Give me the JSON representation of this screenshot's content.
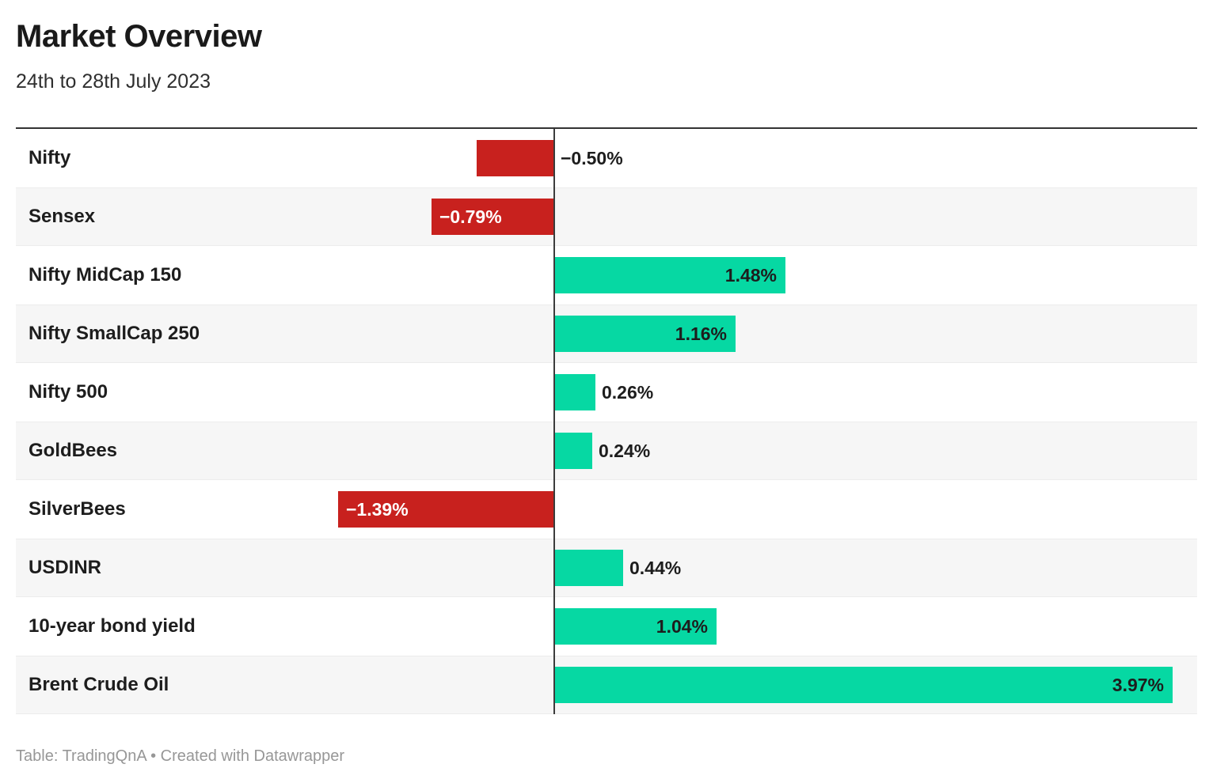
{
  "header": {
    "title": "Market Overview",
    "subtitle": "24th to 28th July 2023"
  },
  "footer": {
    "text": "Table: TradingQnA • Created with Datawrapper"
  },
  "colors": {
    "positive_bar": "#06d8a3",
    "negative_bar": "#c8211e",
    "stripe": "#f6f6f6",
    "axis_line": "#3c3c3c",
    "top_rule": "#333333",
    "label_text": "#1d1d1d",
    "value_text_inside_negative": "#ffffff",
    "footer_text": "#979797"
  },
  "chart_data": {
    "type": "bar",
    "orientation": "horizontal",
    "title": "Market Overview",
    "subtitle": "24th to 28th July 2023",
    "unit": "%",
    "xlabel": "",
    "ylabel": "",
    "axis_zero": true,
    "scale_max_abs": 3.97,
    "grid": false,
    "legend": false,
    "categories": [
      "Nifty",
      "Sensex",
      "Nifty MidCap 150",
      "Nifty SmallCap 250",
      "Nifty 500",
      "GoldBees",
      "SilverBees",
      "USDINR",
      "10-year bond yield",
      "Brent Crude Oil"
    ],
    "values": [
      -0.5,
      -0.79,
      1.48,
      1.16,
      0.26,
      0.24,
      -1.39,
      0.44,
      1.04,
      3.97
    ],
    "rows": [
      {
        "label": "Nifty",
        "value": -0.5,
        "display": "−0.50%",
        "label_position": "outside"
      },
      {
        "label": "Sensex",
        "value": -0.79,
        "display": "−0.79%",
        "label_position": "inside"
      },
      {
        "label": "Nifty MidCap 150",
        "value": 1.48,
        "display": "1.48%",
        "label_position": "inside"
      },
      {
        "label": "Nifty SmallCap 250",
        "value": 1.16,
        "display": "1.16%",
        "label_position": "inside"
      },
      {
        "label": "Nifty 500",
        "value": 0.26,
        "display": "0.26%",
        "label_position": "outside"
      },
      {
        "label": "GoldBees",
        "value": 0.24,
        "display": "0.24%",
        "label_position": "outside"
      },
      {
        "label": "SilverBees",
        "value": -1.39,
        "display": "−1.39%",
        "label_position": "inside"
      },
      {
        "label": "USDINR",
        "value": 0.44,
        "display": "0.44%",
        "label_position": "outside"
      },
      {
        "label": "10-year bond yield",
        "value": 1.04,
        "display": "1.04%",
        "label_position": "inside"
      },
      {
        "label": "Brent Crude Oil",
        "value": 3.97,
        "display": "3.97%",
        "label_position": "inside"
      }
    ]
  }
}
